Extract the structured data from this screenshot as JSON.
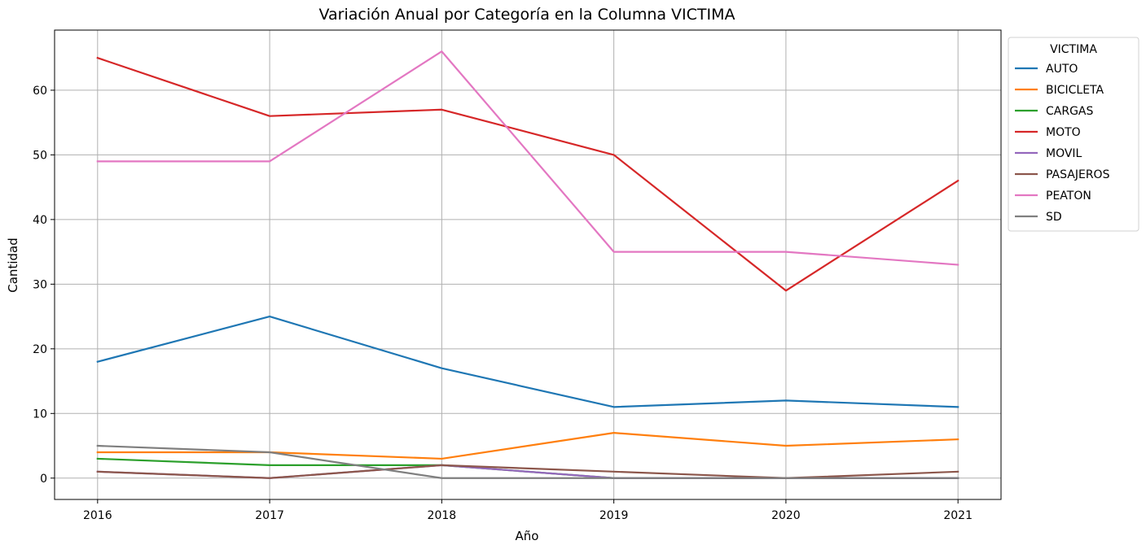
{
  "chart_data": {
    "type": "line",
    "title": "Variación Anual por Categoría en la Columna VICTIMA",
    "xlabel": "Año",
    "ylabel": "Cantidad",
    "x": [
      2016,
      2017,
      2018,
      2019,
      2020,
      2021
    ],
    "xlim": [
      2015.75,
      2021.25
    ],
    "ylim": [
      -3.3,
      69.3
    ],
    "yticks": [
      0,
      10,
      20,
      30,
      40,
      50,
      60
    ],
    "grid": true,
    "legend": {
      "title": "VICTIMA",
      "placement": "outside-right-top"
    },
    "series": [
      {
        "name": "AUTO",
        "color": "#1f77b4",
        "values": [
          18,
          25,
          17,
          11,
          12,
          11
        ]
      },
      {
        "name": "BICICLETA",
        "color": "#ff7f0e",
        "values": [
          4,
          4,
          3,
          7,
          5,
          6
        ]
      },
      {
        "name": "CARGAS",
        "color": "#2ca02c",
        "values": [
          3,
          2,
          2,
          0,
          0,
          0
        ]
      },
      {
        "name": "MOTO",
        "color": "#d62728",
        "values": [
          65,
          56,
          57,
          50,
          29,
          46
        ]
      },
      {
        "name": "MOVIL",
        "color": "#9467bd",
        "values": [
          1,
          0,
          2,
          0,
          0,
          0
        ]
      },
      {
        "name": "PASAJEROS",
        "color": "#8c564b",
        "values": [
          1,
          0,
          2,
          1,
          0,
          1
        ]
      },
      {
        "name": "PEATON",
        "color": "#e377c2",
        "values": [
          49,
          49,
          66,
          35,
          35,
          33
        ]
      },
      {
        "name": "SD",
        "color": "#7f7f7f",
        "values": [
          5,
          4,
          0,
          0,
          0,
          0
        ]
      }
    ]
  }
}
